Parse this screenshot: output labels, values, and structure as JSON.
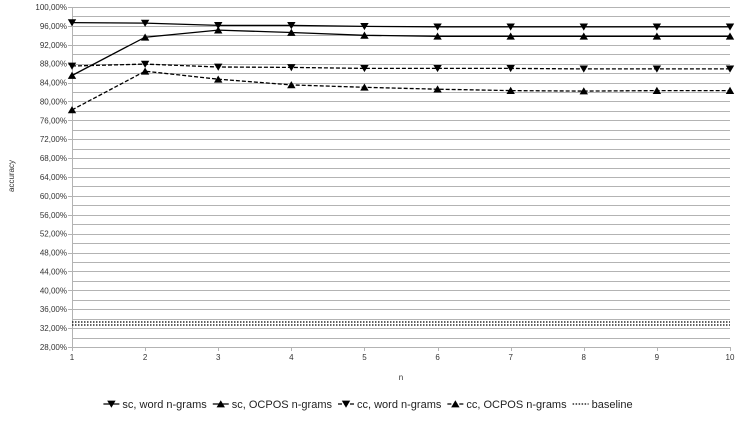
{
  "chart_data": {
    "type": "line",
    "title": "",
    "xlabel": "n",
    "ylabel": "accuracy",
    "x": [
      1,
      2,
      3,
      4,
      5,
      6,
      7,
      8,
      9,
      10
    ],
    "xlim": [
      1,
      10
    ],
    "ylim": [
      28,
      100
    ],
    "y_ticks": [
      28,
      32,
      36,
      40,
      44,
      48,
      52,
      56,
      60,
      64,
      68,
      72,
      76,
      80,
      84,
      88,
      92,
      96,
      100
    ],
    "y_tick_labels": [
      "28,00%",
      "32,00%",
      "36,00%",
      "40,00%",
      "44,00%",
      "48,00%",
      "52,00%",
      "56,00%",
      "60,00%",
      "64,00%",
      "68,00%",
      "72,00%",
      "76,00%",
      "80,00%",
      "84,00%",
      "88,00%",
      "92,00%",
      "96,00%",
      "100,00%"
    ],
    "x_tick_labels": [
      "1",
      "2",
      "3",
      "4",
      "5",
      "6",
      "7",
      "8",
      "9",
      "10"
    ],
    "minor_grid_step": 2,
    "legend_position": "bottom",
    "series": [
      {
        "name": "sc, word n-grams",
        "values": [
          96.7,
          96.6,
          96.1,
          96.1,
          95.9,
          95.8,
          95.8,
          95.8,
          95.8,
          95.8
        ],
        "dash": "solid",
        "marker": "triangle-down",
        "color": "#000000"
      },
      {
        "name": "sc, OCPOS n-grams",
        "values": [
          85.5,
          93.6,
          95.1,
          94.6,
          94.0,
          93.8,
          93.8,
          93.8,
          93.8,
          93.8
        ],
        "dash": "solid",
        "marker": "triangle-up",
        "color": "#000000"
      },
      {
        "name": "cc, word n-grams",
        "values": [
          87.5,
          87.9,
          87.3,
          87.2,
          87.0,
          87.0,
          87.0,
          86.9,
          86.9,
          86.9
        ],
        "dash": "dashed",
        "marker": "triangle-down",
        "color": "#000000"
      },
      {
        "name": "cc, OCPOS n-grams",
        "values": [
          78.2,
          86.4,
          84.7,
          83.5,
          83.0,
          82.6,
          82.3,
          82.2,
          82.3,
          82.3
        ],
        "dash": "dashed",
        "marker": "triangle-up",
        "color": "#000000"
      },
      {
        "name": "baseline",
        "values": [
          33.3,
          33.3,
          33.3,
          33.3,
          33.3,
          33.3,
          33.3,
          33.3,
          33.3,
          33.3
        ],
        "dash": "dotted",
        "marker": "none",
        "color": "#000000"
      }
    ]
  }
}
